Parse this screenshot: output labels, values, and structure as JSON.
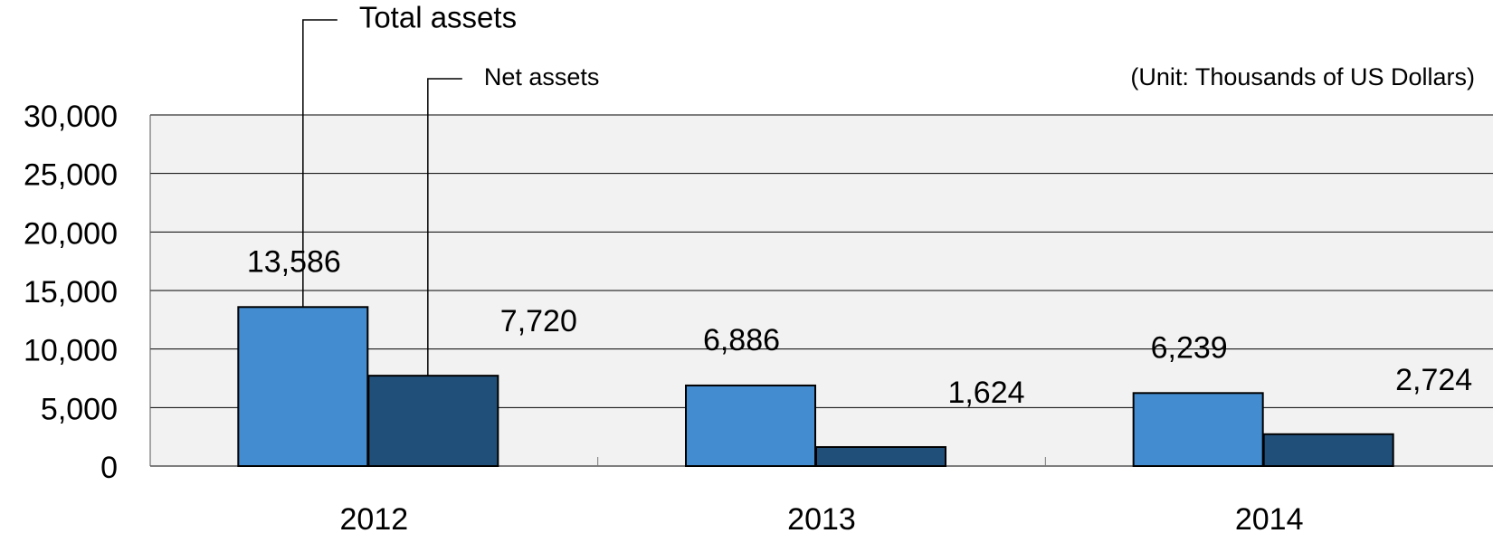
{
  "chart_data": {
    "type": "bar",
    "subtitle": "(Unit: Thousands of US Dollars)",
    "categories": [
      "2012",
      "2013",
      "2014"
    ],
    "series": [
      {
        "name": "Total assets",
        "color": "#438ccf",
        "values": [
          13586,
          6886,
          6239
        ],
        "value_labels": [
          "13,586",
          "6,886",
          "6,239"
        ]
      },
      {
        "name": "Net assets",
        "color": "#20507a",
        "values": [
          7720,
          1624,
          2724
        ],
        "value_labels": [
          "7,720",
          "1,624",
          "2,724"
        ]
      }
    ],
    "ylim": [
      0,
      30000
    ],
    "yticks": [
      0,
      {
        "value": 5000,
        "label": "5,000"
      },
      {
        "value": 10000,
        "label": "10,000"
      },
      {
        "value": 15000,
        "label": "15,000"
      },
      {
        "value": 20000,
        "label": "20,000"
      },
      {
        "value": 25000,
        "label": "25,000"
      },
      {
        "value": 30000,
        "label": "30,000"
      }
    ],
    "grid": true
  }
}
